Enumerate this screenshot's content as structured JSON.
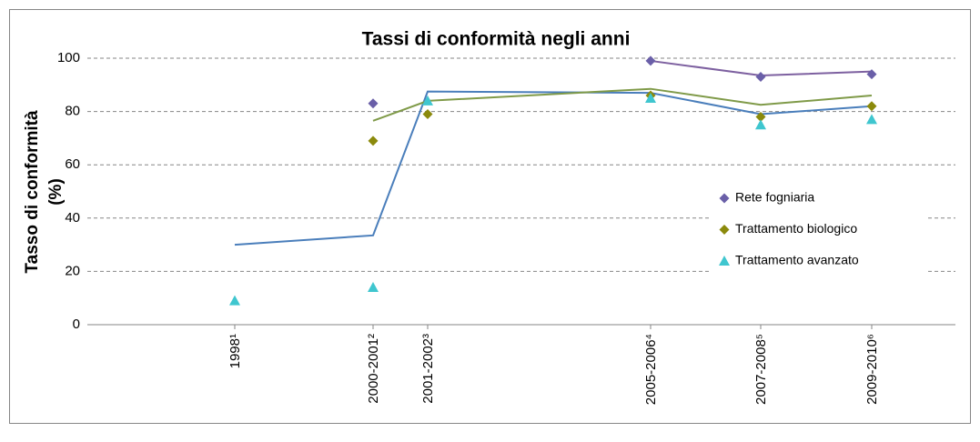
{
  "chart_data": {
    "type": "line",
    "title": "Tassi di conformità negli anni",
    "ylabel": [
      "Tasso di conformità",
      "(%)"
    ],
    "categories": [
      "1998¹",
      "2000-2001²",
      "2001-2002³",
      "2005-2006⁴",
      "2007-2008⁵",
      "2009-2010⁶"
    ],
    "series": [
      {
        "color": "#4a7ebb",
        "marker": "none",
        "values": [
          30,
          33.5,
          87.5,
          87,
          79,
          82
        ]
      },
      {
        "color": "#7f9a48",
        "marker": "none",
        "values": [
          null,
          76.5,
          84,
          88.5,
          82.5,
          86
        ]
      },
      {
        "color": "#7d60a0",
        "marker": "none",
        "values": [
          null,
          null,
          null,
          99,
          93.5,
          95
        ]
      },
      {
        "name": "Rete fogniaria",
        "color": "#6a5fa8",
        "marker": "diamond",
        "values": [
          null,
          83,
          null,
          99,
          93,
          94
        ]
      },
      {
        "name": "Trattamento biologico",
        "color": "#8b8a0c",
        "marker": "diamond",
        "values": [
          null,
          69,
          79,
          86,
          78,
          82
        ]
      },
      {
        "name": "Trattamento avanzato",
        "color": "#3fc6cf",
        "marker": "triangle",
        "values": [
          9,
          14,
          84,
          85,
          75,
          77
        ]
      }
    ],
    "ylim": [
      0,
      100
    ],
    "yticks": [
      0,
      20,
      40,
      60,
      80,
      100
    ],
    "grid": true,
    "legend": "right"
  }
}
